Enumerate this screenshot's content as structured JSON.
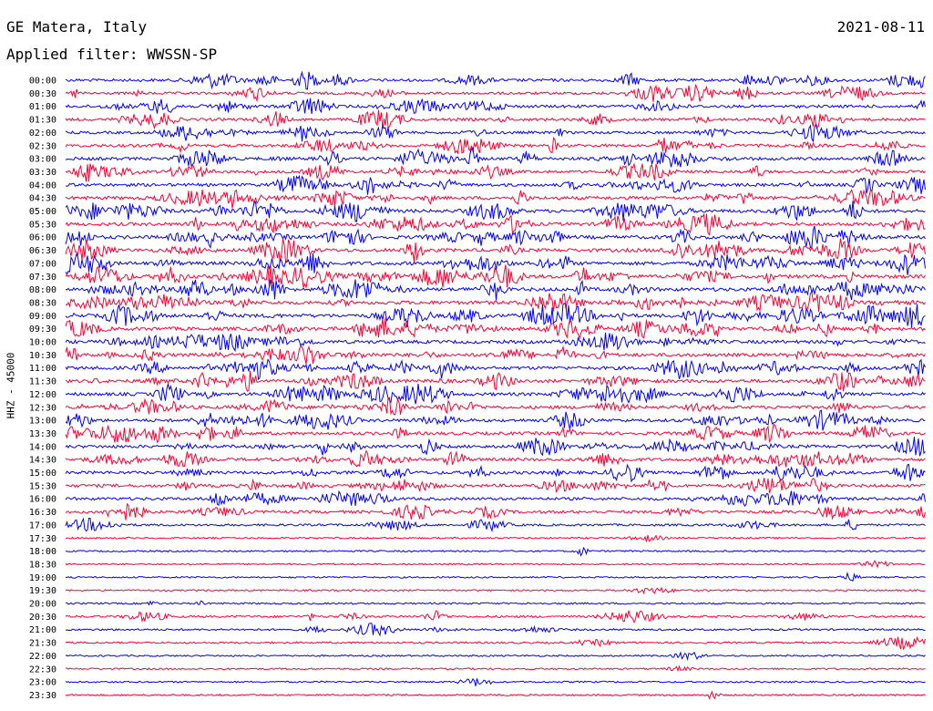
{
  "header": {
    "station": "GE Matera, Italy",
    "filter": "Applied filter: WWSSN-SP",
    "date": "2021-08-11"
  },
  "channel_label": "HHZ - 45000",
  "colors": {
    "odd": "#0000ff",
    "even": "#ff0033"
  },
  "chart_data": {
    "type": "line",
    "title": "GE Matera, Italy",
    "subtitle": "Applied filter: WWSSN-SP",
    "date": "2021-08-11",
    "ylabel": "HHZ - 45000",
    "grid": false,
    "series": [
      {
        "label": "00:00",
        "color": "blue",
        "activity": 0.6
      },
      {
        "label": "00:30",
        "color": "red",
        "activity": 0.5
      },
      {
        "label": "01:00",
        "color": "blue",
        "activity": 0.6
      },
      {
        "label": "01:30",
        "color": "red",
        "activity": 0.6
      },
      {
        "label": "02:00",
        "color": "blue",
        "activity": 0.5
      },
      {
        "label": "02:30",
        "color": "red",
        "activity": 0.6
      },
      {
        "label": "03:00",
        "color": "blue",
        "activity": 0.7
      },
      {
        "label": "03:30",
        "color": "red",
        "activity": 0.6
      },
      {
        "label": "04:00",
        "color": "blue",
        "activity": 0.7
      },
      {
        "label": "04:30",
        "color": "red",
        "activity": 0.8
      },
      {
        "label": "05:00",
        "color": "blue",
        "activity": 0.8
      },
      {
        "label": "05:30",
        "color": "red",
        "activity": 0.8
      },
      {
        "label": "06:00",
        "color": "blue",
        "activity": 0.9
      },
      {
        "label": "06:30",
        "color": "red",
        "activity": 0.9
      },
      {
        "label": "07:00",
        "color": "blue",
        "activity": 0.9
      },
      {
        "label": "07:30",
        "color": "red",
        "activity": 0.9
      },
      {
        "label": "08:00",
        "color": "blue",
        "activity": 0.9
      },
      {
        "label": "08:30",
        "color": "red",
        "activity": 0.9
      },
      {
        "label": "09:00",
        "color": "blue",
        "activity": 0.9
      },
      {
        "label": "09:30",
        "color": "red",
        "activity": 0.9
      },
      {
        "label": "10:00",
        "color": "blue",
        "activity": 0.8
      },
      {
        "label": "10:30",
        "color": "red",
        "activity": 0.8
      },
      {
        "label": "11:00",
        "color": "blue",
        "activity": 0.8
      },
      {
        "label": "11:30",
        "color": "red",
        "activity": 0.8
      },
      {
        "label": "12:00",
        "color": "blue",
        "activity": 0.8
      },
      {
        "label": "12:30",
        "color": "red",
        "activity": 0.8
      },
      {
        "label": "13:00",
        "color": "blue",
        "activity": 0.7
      },
      {
        "label": "13:30",
        "color": "red",
        "activity": 0.7
      },
      {
        "label": "14:00",
        "color": "blue",
        "activity": 0.7
      },
      {
        "label": "14:30",
        "color": "red",
        "activity": 0.7
      },
      {
        "label": "15:00",
        "color": "blue",
        "activity": 0.7
      },
      {
        "label": "15:30",
        "color": "red",
        "activity": 0.7
      },
      {
        "label": "16:00",
        "color": "blue",
        "activity": 0.6
      },
      {
        "label": "16:30",
        "color": "red",
        "activity": 0.6
      },
      {
        "label": "17:00",
        "color": "blue",
        "activity": 0.3
      },
      {
        "label": "17:30",
        "color": "red",
        "activity": 0.05
      },
      {
        "label": "18:00",
        "color": "blue",
        "activity": 0.05
      },
      {
        "label": "18:30",
        "color": "red",
        "activity": 0.05
      },
      {
        "label": "19:00",
        "color": "blue",
        "activity": 0.05
      },
      {
        "label": "19:30",
        "color": "red",
        "activity": 0.05
      },
      {
        "label": "20:00",
        "color": "blue",
        "activity": 0.1
      },
      {
        "label": "20:30",
        "color": "red",
        "activity": 0.3
      },
      {
        "label": "21:00",
        "color": "blue",
        "activity": 0.2
      },
      {
        "label": "21:30",
        "color": "red",
        "activity": 0.15
      },
      {
        "label": "22:00",
        "color": "blue",
        "activity": 0.05
      },
      {
        "label": "22:30",
        "color": "red",
        "activity": 0.05
      },
      {
        "label": "23:00",
        "color": "blue",
        "activity": 0.05
      },
      {
        "label": "23:30",
        "color": "red",
        "activity": 0.05
      }
    ]
  }
}
